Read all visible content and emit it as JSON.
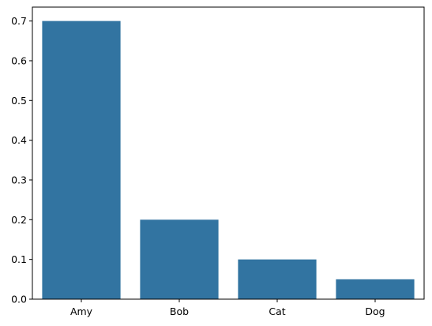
{
  "chart_data": {
    "type": "bar",
    "categories": [
      "Amy",
      "Bob",
      "Cat",
      "Dog"
    ],
    "values": [
      0.7,
      0.2,
      0.1,
      0.05
    ],
    "title": "",
    "xlabel": "",
    "ylabel": "",
    "ylim": [
      0,
      0.735
    ],
    "yticks": [
      "0.0",
      "0.1",
      "0.2",
      "0.3",
      "0.4",
      "0.5",
      "0.6",
      "0.7"
    ],
    "grid": false,
    "legend": "none",
    "colors": {
      "bar": "#3274a1",
      "axis": "#000000",
      "background": "#ffffff"
    }
  }
}
